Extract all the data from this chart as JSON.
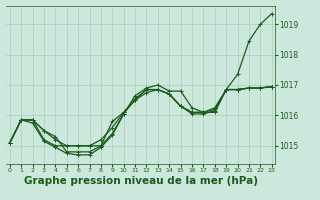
{
  "background_color": "#cce8dc",
  "plot_bg_color": "#cce8dc",
  "line_color": "#1a5c1a",
  "grid_color": "#aaccbb",
  "xlabel": "Graphe pression niveau de la mer (hPa)",
  "xlabel_fontsize": 7.5,
  "xtick_labels": [
    "0",
    "1",
    "2",
    "3",
    "4",
    "5",
    "6",
    "7",
    "8",
    "9",
    "10",
    "11",
    "12",
    "13",
    "14",
    "15",
    "16",
    "17",
    "18",
    "19",
    "20",
    "21",
    "22",
    "23"
  ],
  "yticks": [
    1015,
    1016,
    1017,
    1018,
    1019
  ],
  "ylim": [
    1014.4,
    1019.6
  ],
  "xlim": [
    -0.3,
    23.3
  ],
  "series": [
    [
      1015.1,
      1015.85,
      1015.85,
      1015.5,
      1015.3,
      1014.8,
      1014.8,
      1014.8,
      1015.0,
      1015.4,
      1016.05,
      1016.65,
      1016.9,
      1017.0,
      1016.8,
      1016.8,
      1016.25,
      1016.1,
      1016.1,
      1016.85,
      1017.35,
      1018.45,
      1019.0,
      1019.35
    ],
    [
      1015.1,
      1015.85,
      1015.85,
      1015.2,
      1015.0,
      1015.0,
      1015.0,
      1015.0,
      1015.0,
      1015.8,
      1016.1,
      1016.5,
      1016.75,
      1016.85,
      1016.7,
      1016.3,
      1016.1,
      1016.1,
      1016.2,
      1016.85,
      1016.85,
      1016.9,
      1016.9,
      1016.95
    ],
    [
      1015.1,
      1015.85,
      1015.75,
      1015.15,
      1014.95,
      1014.75,
      1014.7,
      1014.7,
      1014.95,
      1015.35,
      1016.05,
      1016.55,
      1016.85,
      1016.85,
      1016.7,
      1016.3,
      1016.05,
      1016.05,
      1016.15,
      1016.85,
      1016.85,
      1016.9,
      1016.9,
      1016.95
    ],
    [
      1015.1,
      1015.85,
      1015.85,
      1015.5,
      1015.2,
      1015.0,
      1015.0,
      1015.0,
      1015.2,
      1015.6,
      1016.1,
      1016.5,
      1016.85,
      1016.85,
      1016.7,
      1016.3,
      1016.1,
      1016.1,
      1016.25,
      1016.85,
      1016.85,
      1016.9,
      1016.9,
      1016.95
    ]
  ],
  "marker": "+",
  "marker_size": 3,
  "linewidth": 0.9
}
